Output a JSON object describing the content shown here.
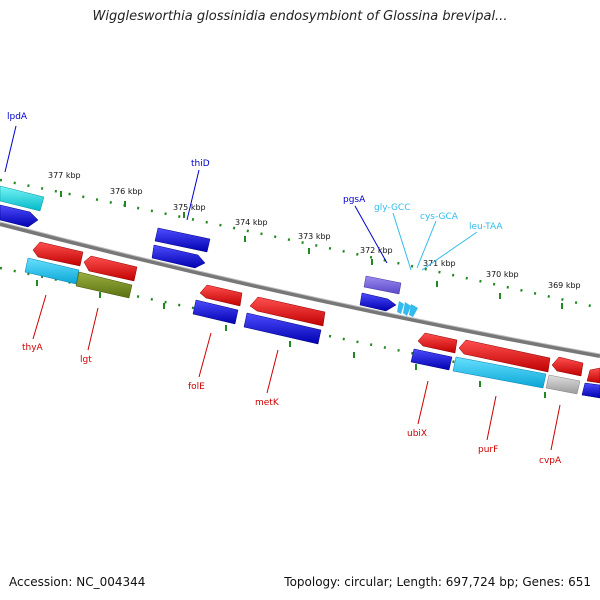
{
  "title": "Wigglesworthia glossinidia endosymbiont of Glossina brevipal...",
  "footer": {
    "accession": "Accession: NC_004344",
    "stats": "Topology: circular; Length: 697,724 bp; Genes: 651"
  },
  "ticks": [
    "377 kbp",
    "376 kbp",
    "375 kbp",
    "374 kbp",
    "373 kbp",
    "372 kbp",
    "371 kbp",
    "370 kbp",
    "369 kbp"
  ],
  "genes_top": [
    "lpdA",
    "thiD",
    "pgsA"
  ],
  "rna_genes": [
    "gly-GCC",
    "cys-GCA",
    "leu-TAA"
  ],
  "genes_bottom": [
    "thyA",
    "lgt",
    "folE",
    "metK",
    "ubiX",
    "purF",
    "cvpA"
  ],
  "colors": {
    "forward_strand": "#0000ee",
    "reverse_strand": "#ee0000",
    "rna": "#33bbee",
    "backbone": "#888888",
    "ticks": "#228822"
  }
}
